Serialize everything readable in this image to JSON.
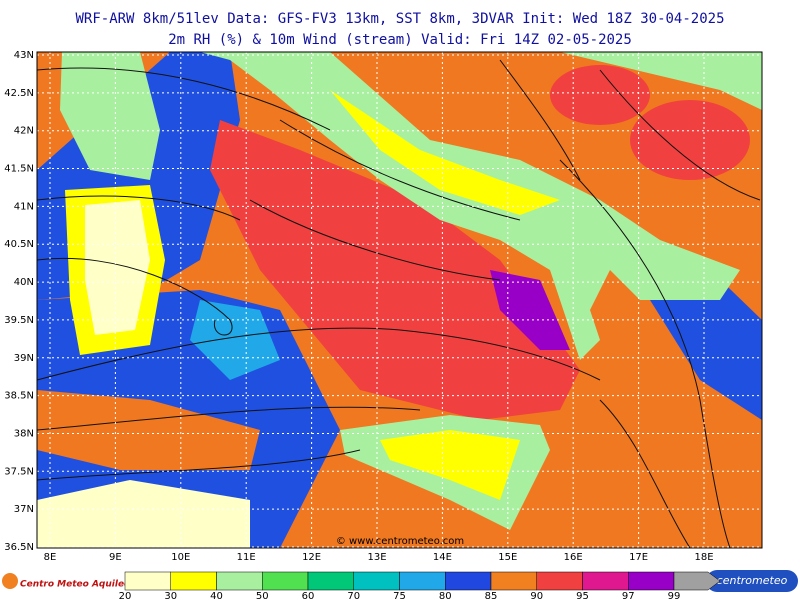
{
  "header": {
    "line1": "WRF-ARW 8km/51lev  Data: GFS-FV3 13km, SST 8km, 3DVAR  Init: Wed 18Z 30-04-2025",
    "line2": "2m RH (%) & 10m Wind (stream)  Valid: Fri 14Z 02-05-2025"
  },
  "map": {
    "lat_labels": [
      "43N",
      "42.5N",
      "42N",
      "41.5N",
      "41N",
      "40.5N",
      "40N",
      "39.5N",
      "39N",
      "38.5N",
      "38N",
      "37.5N",
      "37N",
      "36.5N"
    ],
    "lon_labels": [
      "8E",
      "9E",
      "10E",
      "11E",
      "12E",
      "13E",
      "14E",
      "15E",
      "16E",
      "17E",
      "18E"
    ],
    "watermark": "© www.centrometeo.com"
  },
  "legend": {
    "labels": [
      "20",
      "30",
      "40",
      "50",
      "60",
      "70",
      "75",
      "80",
      "85",
      "90",
      "95",
      "97",
      "99"
    ],
    "colors": [
      "#ffffc8",
      "#ffff00",
      "#a8f0a0",
      "#50e050",
      "#00c878",
      "#00c0c0",
      "#20a8e8",
      "#2048e0",
      "#f08020",
      "#f04040",
      "#e01890",
      "#9800c8",
      "#a0a0a0"
    ]
  },
  "logos": {
    "left": "Centro Meteo Aquileo",
    "right": "centrometeo"
  }
}
